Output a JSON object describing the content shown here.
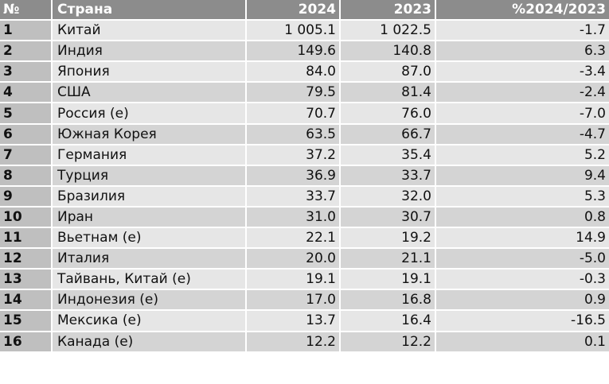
{
  "header": {
    "rank": "№",
    "country": "Страна",
    "y2024": "2024",
    "y2023": "2023",
    "change": "%2024/2023"
  },
  "colors": {
    "header_bg": "#8c8c8c",
    "rank_bg": "#bfbfbf",
    "row_light": "#e6e6e6",
    "row_dark": "#d4d4d4"
  },
  "chart_data": {
    "type": "table",
    "columns": [
      "№",
      "Страна",
      "2024",
      "2023",
      "%2024/2023"
    ],
    "rows": [
      {
        "rank": "1",
        "country": "Китай",
        "y2024": "1 005.1",
        "y2023": "1 022.5",
        "change": "-1.7"
      },
      {
        "rank": "2",
        "country": "Индия",
        "y2024": "149.6",
        "y2023": "140.8",
        "change": "6.3"
      },
      {
        "rank": "3",
        "country": "Япония",
        "y2024": "84.0",
        "y2023": "87.0",
        "change": "-3.4"
      },
      {
        "rank": "4",
        "country": "США",
        "y2024": "79.5",
        "y2023": "81.4",
        "change": "-2.4"
      },
      {
        "rank": "5",
        "country": "Россия (e)",
        "y2024": "70.7",
        "y2023": "76.0",
        "change": "-7.0"
      },
      {
        "rank": "6",
        "country": "Южная Корея",
        "y2024": "63.5",
        "y2023": "66.7",
        "change": "-4.7"
      },
      {
        "rank": "7",
        "country": "Германия",
        "y2024": "37.2",
        "y2023": "35.4",
        "change": "5.2"
      },
      {
        "rank": "8",
        "country": "Турция",
        "y2024": "36.9",
        "y2023": "33.7",
        "change": "9.4"
      },
      {
        "rank": "9",
        "country": "Бразилия",
        "y2024": "33.7",
        "y2023": "32.0",
        "change": "5.3"
      },
      {
        "rank": "10",
        "country": "Иран",
        "y2024": "31.0",
        "y2023": "30.7",
        "change": "0.8"
      },
      {
        "rank": "11",
        "country": "Вьетнам (e)",
        "y2024": "22.1",
        "y2023": "19.2",
        "change": "14.9"
      },
      {
        "rank": "12",
        "country": "Италия",
        "y2024": "20.0",
        "y2023": "21.1",
        "change": "-5.0"
      },
      {
        "rank": "13",
        "country": "Тайвань, Китай (e)",
        "y2024": "19.1",
        "y2023": "19.1",
        "change": "-0.3"
      },
      {
        "rank": "14",
        "country": "Индонезия (e)",
        "y2024": "17.0",
        "y2023": "16.8",
        "change": "0.9"
      },
      {
        "rank": "15",
        "country": "Мексика (e)",
        "y2024": "13.7",
        "y2023": "16.4",
        "change": "-16.5"
      },
      {
        "rank": "16",
        "country": "Канада (e)",
        "y2024": "12.2",
        "y2023": "12.2",
        "change": "0.1"
      }
    ]
  }
}
